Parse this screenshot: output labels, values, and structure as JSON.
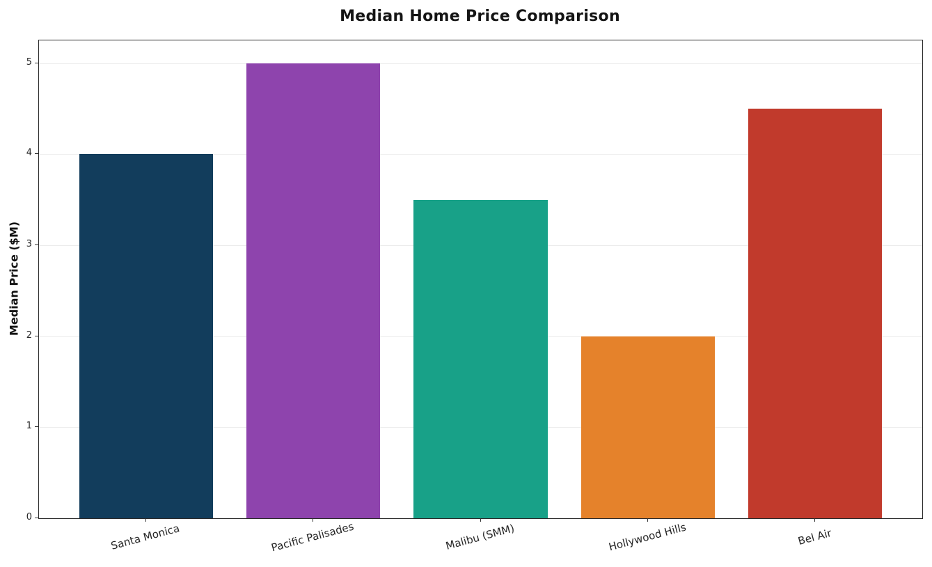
{
  "title": "Median Home Price Comparison",
  "chart_data": {
    "type": "bar",
    "title": "Median Home Price Comparison",
    "xlabel": "",
    "ylabel": "Median Price ($M)",
    "categories": [
      "Santa Monica",
      "Pacific Palisades",
      "Malibu (SMM)",
      "Hollywood Hills",
      "Bel Air"
    ],
    "values": [
      4.0,
      5.0,
      3.5,
      2.0,
      4.5
    ],
    "bar_colors": [
      "#123d5c",
      "#8e44ad",
      "#18a188",
      "#e5822b",
      "#c13a2c"
    ],
    "yticks": [
      0,
      1,
      2,
      3,
      4,
      5
    ],
    "ytick_labels": [
      "0",
      "1",
      "2",
      "3",
      "4",
      "5"
    ],
    "ylim": [
      0,
      5.25
    ],
    "grid": "horizontal-light",
    "legend": "none",
    "background_color": "#ffffff",
    "grid_color": "#ececec",
    "text_color": "#262626"
  }
}
